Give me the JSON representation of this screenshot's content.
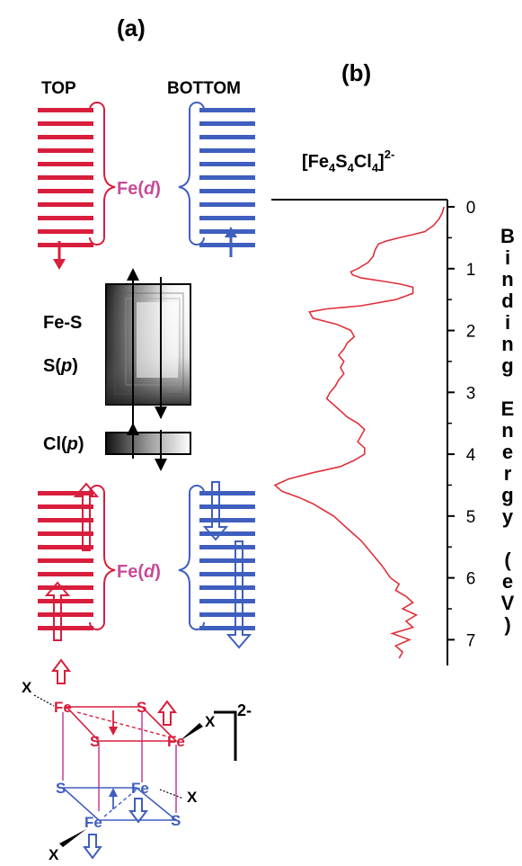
{
  "colors": {
    "red": "#d81e3c",
    "blue": "#3f5fbf",
    "magenta": "#c84a9a",
    "spectrum": "#e0303a",
    "black": "#000000"
  },
  "labels": {
    "panel_a": "(a)",
    "panel_b": "(b)",
    "top": "TOP",
    "bottom": "BOTTOM",
    "fe_d_upper": {
      "pre": "Fe(",
      "it": "d",
      "post": ")"
    },
    "fe_d_lower": {
      "pre": "Fe(",
      "it": "d",
      "post": ")"
    },
    "fe_s": "Fe-S",
    "s_p": {
      "pre": "S(",
      "it": "p",
      "post": ")"
    },
    "cl_p": {
      "pre": "Cl(",
      "it": "p",
      "post": ")"
    },
    "formula": {
      "p1": "[Fe",
      "s1": "4",
      "p2": "S",
      "s2": "4",
      "p3": "Cl",
      "s3": "4",
      "p4": "]",
      "sup": "2-"
    },
    "axis_label_letters": [
      "B",
      "i",
      "n",
      "d",
      "i",
      "n",
      "g",
      " ",
      "E",
      "n",
      "e",
      "r",
      "g",
      "y",
      " ",
      "(",
      "e",
      "V",
      ")"
    ],
    "cluster_charge": "2-"
  },
  "cluster_atoms": {
    "top_fe_left": "Fe",
    "top_s_right": "S",
    "top_s_left": "S",
    "top_fe_right": "Fe",
    "bot_s_left": "S",
    "bot_fe_right": "Fe",
    "bot_fe_left": "Fe",
    "bot_s_right": "S",
    "x_top_left": "X",
    "x_top_right": "X",
    "x_bot_right": "X",
    "x_bot_left": "X"
  },
  "chart_data": {
    "type": "line",
    "ylabel": "Binding Energy (eV)",
    "ylim": [
      0,
      7.3
    ],
    "yticks": [
      0,
      1,
      2,
      3,
      4,
      5,
      6,
      7
    ],
    "axis_inverted": true,
    "series": [
      {
        "points": [
          [
            0.0,
            0.02
          ],
          [
            0.1,
            0.03
          ],
          [
            0.2,
            0.05
          ],
          [
            0.3,
            0.08
          ],
          [
            0.4,
            0.13
          ],
          [
            0.45,
            0.2
          ],
          [
            0.5,
            0.28
          ],
          [
            0.55,
            0.35
          ],
          [
            0.6,
            0.4
          ],
          [
            0.7,
            0.42
          ],
          [
            0.8,
            0.43
          ],
          [
            0.9,
            0.46
          ],
          [
            1.0,
            0.52
          ],
          [
            1.05,
            0.56
          ],
          [
            1.1,
            0.55
          ],
          [
            1.15,
            0.5
          ],
          [
            1.2,
            0.38
          ],
          [
            1.25,
            0.27
          ],
          [
            1.3,
            0.2
          ],
          [
            1.4,
            0.2
          ],
          [
            1.5,
            0.3
          ],
          [
            1.6,
            0.5
          ],
          [
            1.65,
            0.7
          ],
          [
            1.7,
            0.8
          ],
          [
            1.8,
            0.78
          ],
          [
            1.9,
            0.64
          ],
          [
            2.0,
            0.56
          ],
          [
            2.1,
            0.54
          ],
          [
            2.2,
            0.58
          ],
          [
            2.3,
            0.6
          ],
          [
            2.4,
            0.63
          ],
          [
            2.5,
            0.6
          ],
          [
            2.6,
            0.62
          ],
          [
            2.7,
            0.6
          ],
          [
            2.8,
            0.63
          ],
          [
            2.9,
            0.65
          ],
          [
            3.0,
            0.68
          ],
          [
            3.1,
            0.7
          ],
          [
            3.2,
            0.66
          ],
          [
            3.3,
            0.62
          ],
          [
            3.4,
            0.58
          ],
          [
            3.5,
            0.52
          ],
          [
            3.6,
            0.48
          ],
          [
            3.7,
            0.5
          ],
          [
            3.8,
            0.52
          ],
          [
            3.9,
            0.48
          ],
          [
            4.0,
            0.48
          ],
          [
            4.1,
            0.54
          ],
          [
            4.2,
            0.62
          ],
          [
            4.3,
            0.78
          ],
          [
            4.4,
            0.92
          ],
          [
            4.5,
            1.0
          ],
          [
            4.6,
            0.96
          ],
          [
            4.7,
            0.86
          ],
          [
            4.8,
            0.78
          ],
          [
            4.9,
            0.72
          ],
          [
            5.0,
            0.66
          ],
          [
            5.2,
            0.58
          ],
          [
            5.4,
            0.5
          ],
          [
            5.6,
            0.44
          ],
          [
            5.8,
            0.38
          ],
          [
            6.0,
            0.33
          ],
          [
            6.1,
            0.28
          ],
          [
            6.2,
            0.3
          ],
          [
            6.3,
            0.24
          ],
          [
            6.4,
            0.2
          ],
          [
            6.5,
            0.26
          ],
          [
            6.6,
            0.18
          ],
          [
            6.7,
            0.24
          ],
          [
            6.8,
            0.2
          ],
          [
            6.9,
            0.32
          ],
          [
            7.0,
            0.22
          ],
          [
            7.1,
            0.3
          ],
          [
            7.2,
            0.26
          ],
          [
            7.3,
            0.28
          ]
        ]
      }
    ]
  }
}
